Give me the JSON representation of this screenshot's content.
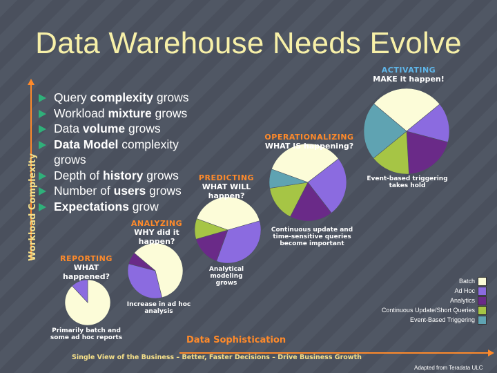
{
  "title": "Data Warehouse Needs Evolve",
  "y_axis_label": "Workload Complexity",
  "x_axis_label": "Data Sophistication",
  "footer": "Single View of the Business – Better, Faster Decisions – Drive Business Growth",
  "credit": "Adapted from Teradata ULC",
  "bullets": [
    {
      "pre": "Query ",
      "bold": "complexity",
      "post": " grows"
    },
    {
      "pre": "Workload ",
      "bold": "mixture",
      "post": " grows"
    },
    {
      "pre": "Data ",
      "bold": "volume",
      "post": " grows"
    },
    {
      "pre": "",
      "bold": "Data Model",
      "post": " complexity grows"
    },
    {
      "pre": "Depth of ",
      "bold": "history",
      "post": " grows"
    },
    {
      "pre": "Number of ",
      "bold": "users",
      "post": " grows"
    },
    {
      "pre": "",
      "bold": "Expectations",
      "post": " grow"
    }
  ],
  "stages": [
    {
      "name": "REPORTING",
      "question": "WHAT happened?"
    },
    {
      "name": "ANALYZING",
      "question": "WHY did it happen?"
    },
    {
      "name": "PREDICTING",
      "question": "WHAT WILL happen?"
    },
    {
      "name": "OPERATIONALIZING",
      "question": "WHAT IS happening?"
    },
    {
      "name": "ACTIVATING",
      "question": "MAKE it happen!"
    }
  ],
  "notes": [
    "Primarily batch and some ad hoc reports",
    "Increase in ad hoc analysis",
    "Analytical modeling grows",
    "Continuous update and time-sensitive queries become important",
    "Event-based triggering takes hold"
  ],
  "legend": [
    {
      "label": "Batch",
      "color": "#fcfcd8"
    },
    {
      "label": "Ad Hoc",
      "color": "#8b6be0"
    },
    {
      "label": "Analytics",
      "color": "#6a2a88"
    },
    {
      "label": "Continuous Update/Short Queries",
      "color": "#a6c545"
    },
    {
      "label": "Event-Based Triggering",
      "color": "#5fa3b2"
    }
  ],
  "pies": [
    [
      88,
      12,
      0,
      0,
      0
    ],
    [
      60,
      33,
      7,
      0,
      0
    ],
    [
      40,
      35,
      15,
      10,
      0
    ],
    [
      34,
      25,
      18,
      15,
      8
    ],
    [
      28,
      15,
      20,
      15,
      22
    ]
  ]
}
